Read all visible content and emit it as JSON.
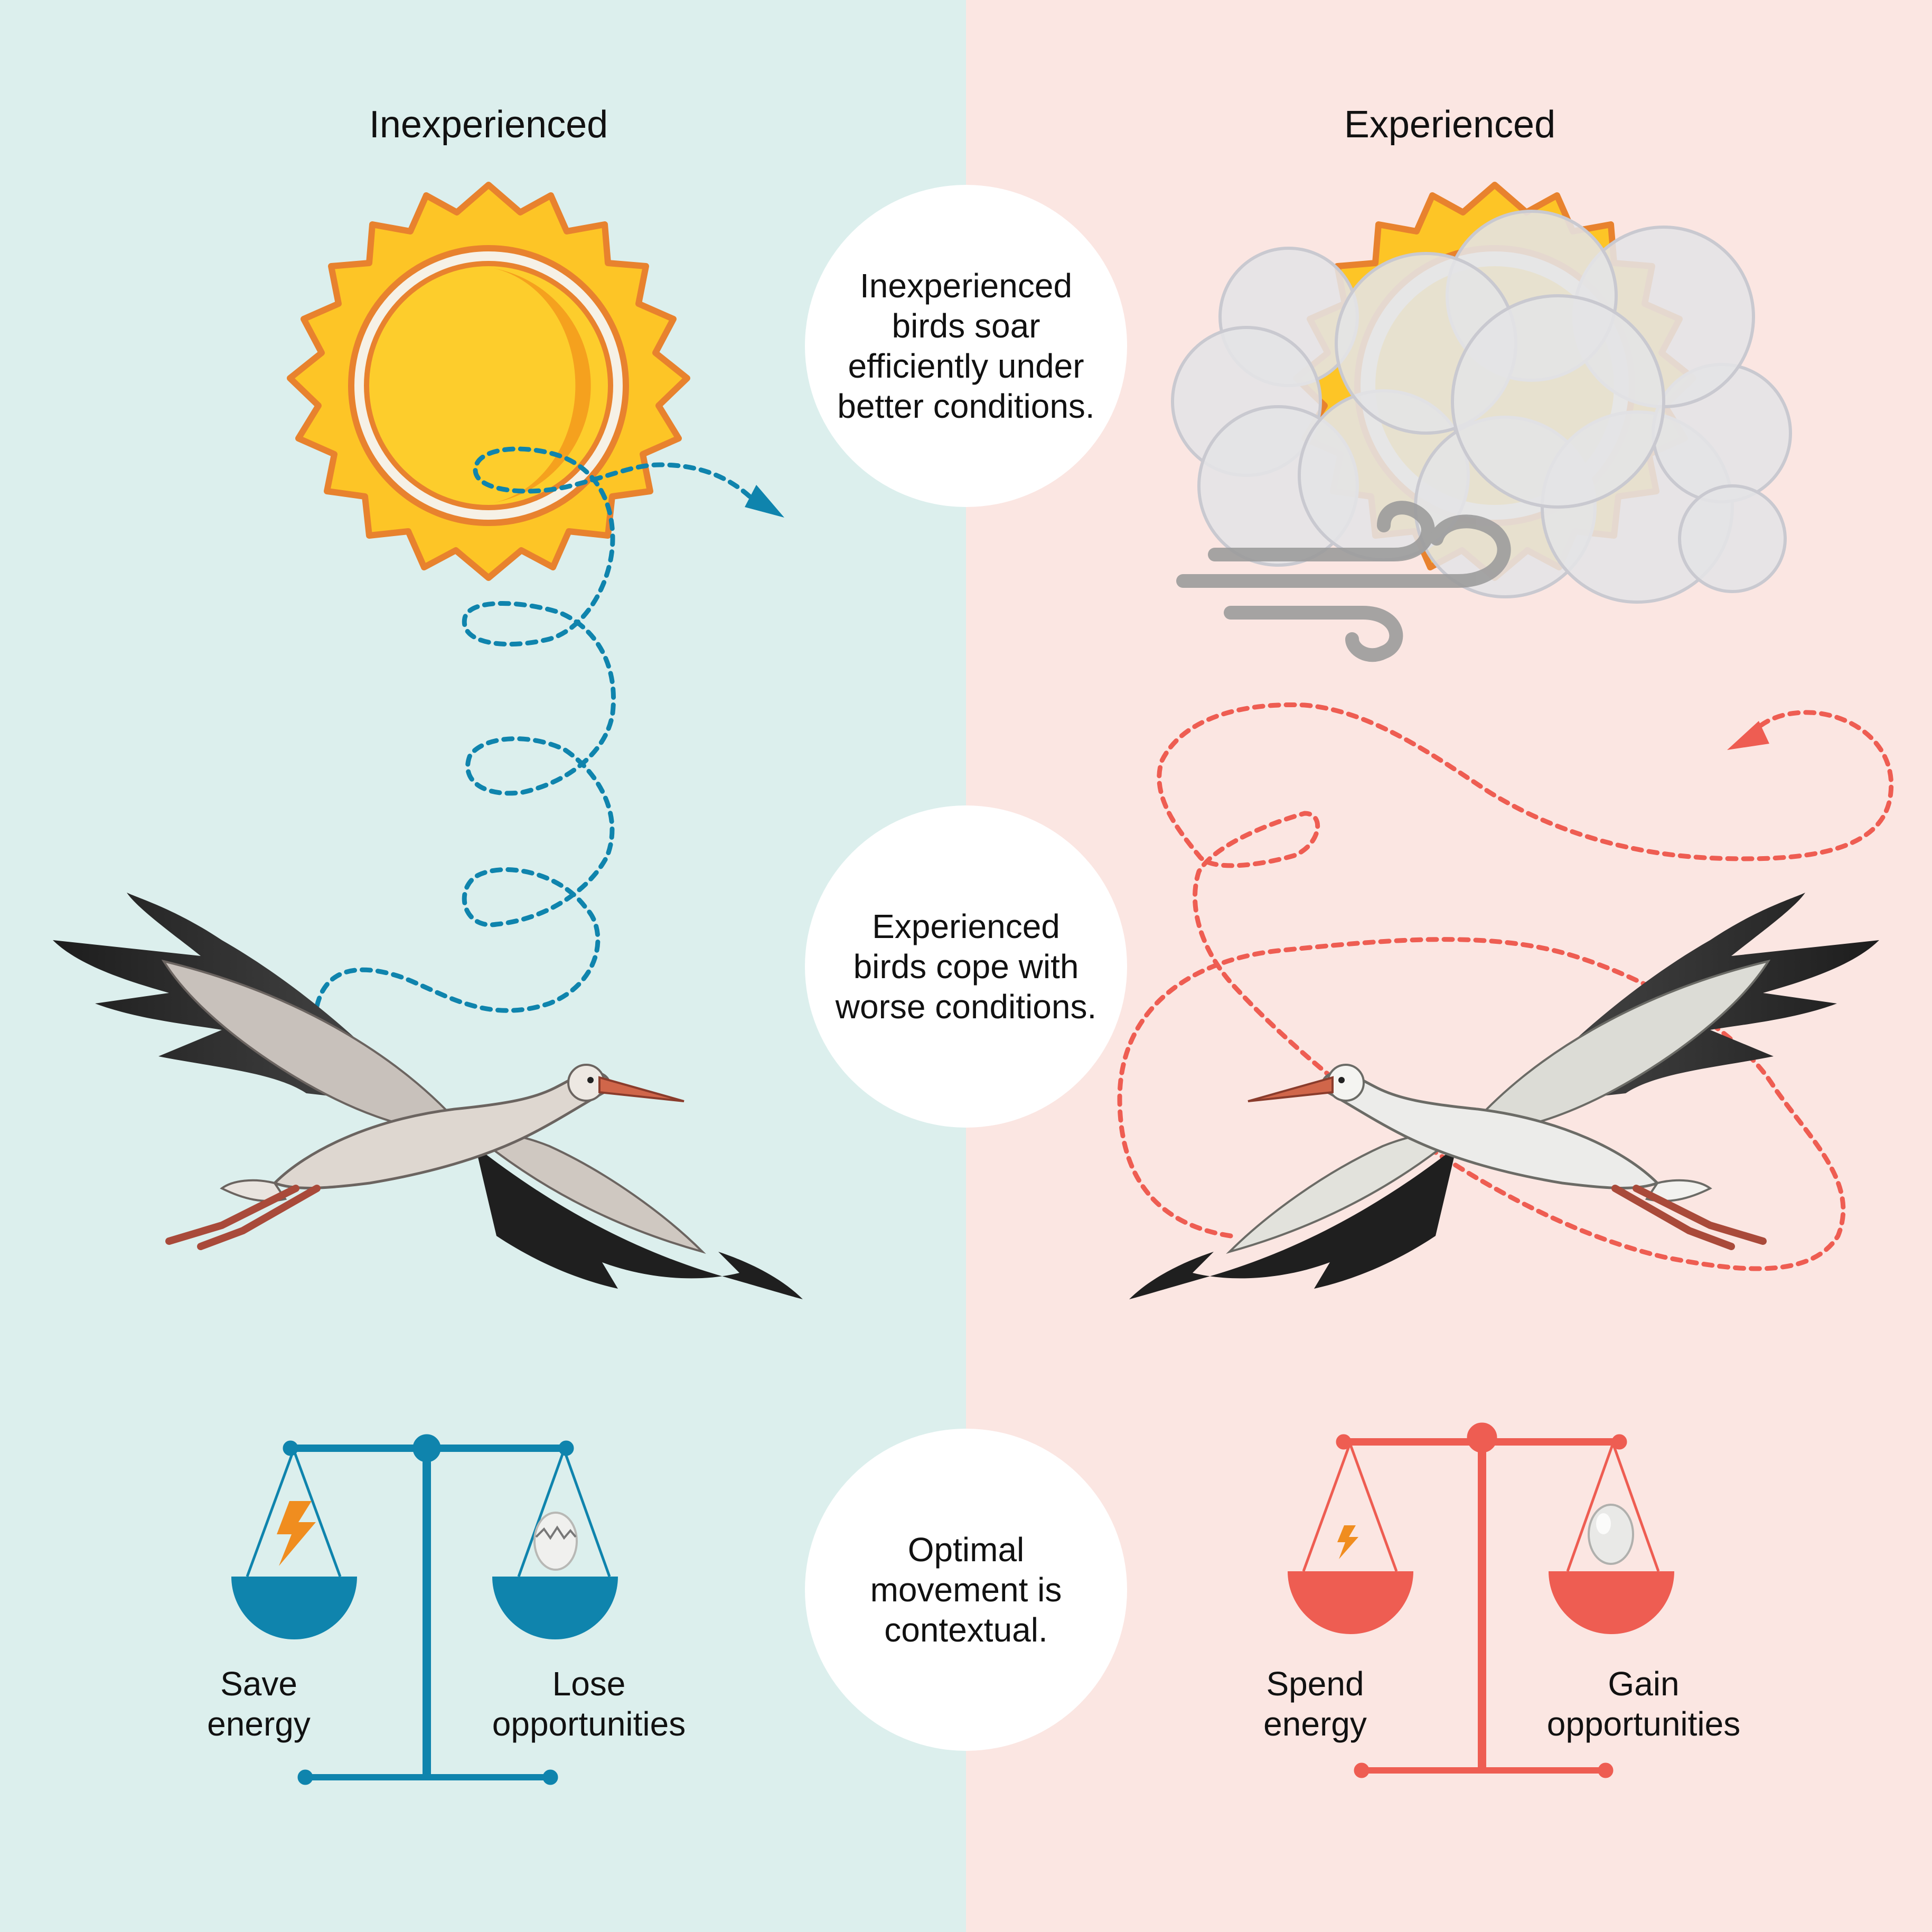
{
  "colors": {
    "left_background": "#dcefed",
    "right_background": "#fbe6e2",
    "inexperienced_accent": "#0f84ad",
    "experienced_accent": "#ee5d52"
  },
  "panels": {
    "left": {
      "heading": "Inexperienced"
    },
    "right": {
      "heading": "Experienced"
    }
  },
  "callouts": {
    "top": "Inexperienced\nbirds soar\nefficiently under\nbetter conditions.",
    "middle": "Experienced\nbirds cope with\nworse conditions.",
    "bottom": "Optimal\nmovement is\ncontextual."
  },
  "scales": {
    "left": {
      "pan_left_icon": "lightning-icon",
      "pan_right_icon": "broken-egg-icon",
      "label_left": "Save\nenergy",
      "label_right": "Lose\nopportunities"
    },
    "right": {
      "pan_left_icon": "lightning-icon",
      "pan_right_icon": "egg-icon",
      "label_left": "Spend\nenergy",
      "label_right": "Gain\nopportunities"
    }
  },
  "icons": {
    "left_weather": "sun-icon",
    "right_weather": "cloudy-windy-sun-icon",
    "bird": "stork-icon"
  }
}
